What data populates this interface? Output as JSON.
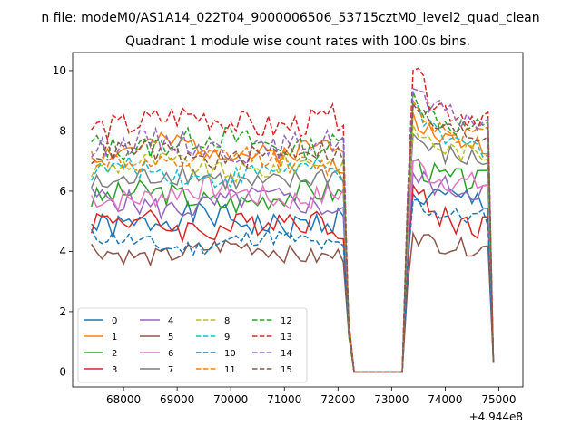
{
  "header": {
    "suptitle": "n file: modeM0/AS1A14_022T04_9000006506_53715cztM0_level2_quad_clean",
    "title": "Quadrant 1 module wise count rates with 100.0s bins.",
    "x_offset_label": "+4.944e8"
  },
  "chart_data": {
    "type": "line",
    "title": "Quadrant 1 module wise count rates with 100.0s bins.",
    "xlabel": "",
    "ylabel": "",
    "x_offset": 494400000,
    "xlim": [
      67050,
      75450
    ],
    "ylim": [
      -0.5,
      10.6
    ],
    "xticks": [
      68000,
      69000,
      70000,
      71000,
      72000,
      73000,
      74000,
      75000
    ],
    "yticks": [
      0,
      2,
      4,
      6,
      8,
      10
    ],
    "grid": false,
    "legend_position": "lower-left",
    "legend_columns": 4,
    "series": [
      {
        "name": "0",
        "color": "#1f77b4",
        "dash": "solid",
        "base": 5.0,
        "amp": 0.45,
        "post": 5.7,
        "peak": 5.9,
        "seed": 1
      },
      {
        "name": "1",
        "color": "#ff7f0e",
        "dash": "solid",
        "base": 7.4,
        "amp": 0.35,
        "post": 7.5,
        "peak": 8.6,
        "seed": 2
      },
      {
        "name": "2",
        "color": "#2ca02c",
        "dash": "solid",
        "base": 5.8,
        "amp": 0.4,
        "post": 6.3,
        "peak": 7.0,
        "seed": 3
      },
      {
        "name": "3",
        "color": "#d62728",
        "dash": "solid",
        "base": 4.9,
        "amp": 0.45,
        "post": 4.8,
        "peak": 6.2,
        "seed": 4
      },
      {
        "name": "4",
        "color": "#9467bd",
        "dash": "solid",
        "base": 5.6,
        "amp": 0.4,
        "post": 6.0,
        "peak": 6.6,
        "seed": 5
      },
      {
        "name": "5",
        "color": "#8c564b",
        "dash": "solid",
        "base": 4.0,
        "amp": 0.3,
        "post": 4.1,
        "peak": 4.6,
        "seed": 6
      },
      {
        "name": "6",
        "color": "#e377c2",
        "dash": "solid",
        "base": 5.9,
        "amp": 0.4,
        "post": 6.2,
        "peak": 7.0,
        "seed": 7
      },
      {
        "name": "7",
        "color": "#7f7f7f",
        "dash": "solid",
        "base": 6.4,
        "amp": 0.4,
        "post": 7.0,
        "peak": 7.9,
        "seed": 8
      },
      {
        "name": "8",
        "color": "#bcbd22",
        "dash": "dashed",
        "base": 6.8,
        "amp": 0.35,
        "post": 7.2,
        "peak": 8.2,
        "seed": 9
      },
      {
        "name": "9",
        "color": "#17becf",
        "dash": "dashed",
        "base": 6.6,
        "amp": 0.35,
        "post": 7.4,
        "peak": 8.8,
        "seed": 10
      },
      {
        "name": "10",
        "color": "#1f77b4",
        "dash": "dashed",
        "base": 4.3,
        "amp": 0.3,
        "post": 5.1,
        "peak": 5.7,
        "seed": 11
      },
      {
        "name": "11",
        "color": "#ff7f0e",
        "dash": "dashed",
        "base": 7.0,
        "amp": 0.35,
        "post": 7.8,
        "peak": 9.0,
        "seed": 12
      },
      {
        "name": "12",
        "color": "#2ca02c",
        "dash": "dashed",
        "base": 7.6,
        "amp": 0.4,
        "post": 8.0,
        "peak": 9.3,
        "seed": 13
      },
      {
        "name": "13",
        "color": "#d62728",
        "dash": "dashed",
        "base": 8.3,
        "amp": 0.45,
        "post": 8.4,
        "peak": 10.0,
        "seed": 14
      },
      {
        "name": "14",
        "color": "#9467bd",
        "dash": "dashed",
        "base": 7.5,
        "amp": 0.4,
        "post": 8.3,
        "peak": 9.4,
        "seed": 15
      },
      {
        "name": "15",
        "color": "#8c564b",
        "dash": "dashed",
        "base": 7.2,
        "amp": 0.35,
        "post": 7.8,
        "peak": 8.9,
        "seed": 16
      }
    ],
    "segments": {
      "start": 67400,
      "step": 100,
      "drop_start": 72100,
      "gap_start": 72300,
      "gap_end": 73200,
      "rise_end": 73400,
      "end": 74900,
      "gap_value": 0.0,
      "end_value": 0.3
    }
  }
}
